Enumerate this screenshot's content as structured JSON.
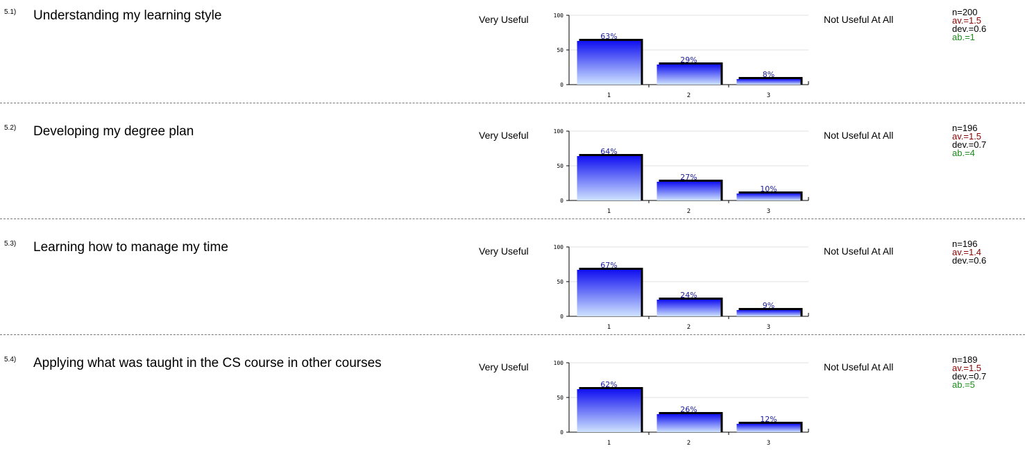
{
  "left_label": "Very Useful",
  "right_label": "Not Useful At All",
  "items": [
    {
      "number": "5.1)",
      "question": "Understanding my learning style",
      "stats": {
        "n": "n=200",
        "av": "av.=1.5",
        "dev": "dev.=0.6",
        "ab": "ab.=1"
      },
      "chart_data": {
        "type": "bar",
        "categories": [
          "1",
          "2",
          "3"
        ],
        "values": [
          63,
          29,
          8
        ],
        "value_labels": [
          "63%",
          "29%",
          "8%"
        ],
        "y_ticks": [
          "0",
          "50",
          "100"
        ],
        "ylim": [
          0,
          100
        ]
      }
    },
    {
      "number": "5.2)",
      "question": "Developing my degree plan",
      "stats": {
        "n": "n=196",
        "av": "av.=1.5",
        "dev": "dev.=0.7",
        "ab": "ab.=4"
      },
      "chart_data": {
        "type": "bar",
        "categories": [
          "1",
          "2",
          "3"
        ],
        "values": [
          64,
          27,
          10
        ],
        "value_labels": [
          "64%",
          "27%",
          "10%"
        ],
        "y_ticks": [
          "0",
          "50",
          "100"
        ],
        "ylim": [
          0,
          100
        ]
      }
    },
    {
      "number": "5.3)",
      "question": "Learning how to manage my time",
      "stats": {
        "n": "n=196",
        "av": "av.=1.4",
        "dev": "dev.=0.6",
        "ab": ""
      },
      "chart_data": {
        "type": "bar",
        "categories": [
          "1",
          "2",
          "3"
        ],
        "values": [
          67,
          24,
          9
        ],
        "value_labels": [
          "67%",
          "24%",
          "9%"
        ],
        "y_ticks": [
          "0",
          "50",
          "100"
        ],
        "ylim": [
          0,
          100
        ]
      }
    },
    {
      "number": "5.4)",
      "question": "Applying what was taught in the CS course in other courses",
      "stats": {
        "n": "n=189",
        "av": "av.=1.5",
        "dev": "dev.=0.7",
        "ab": "ab.=5"
      },
      "chart_data": {
        "type": "bar",
        "categories": [
          "1",
          "2",
          "3"
        ],
        "values": [
          62,
          26,
          12
        ],
        "value_labels": [
          "62%",
          "26%",
          "12%"
        ],
        "y_ticks": [
          "0",
          "50",
          "100"
        ],
        "ylim": [
          0,
          100
        ]
      }
    }
  ]
}
